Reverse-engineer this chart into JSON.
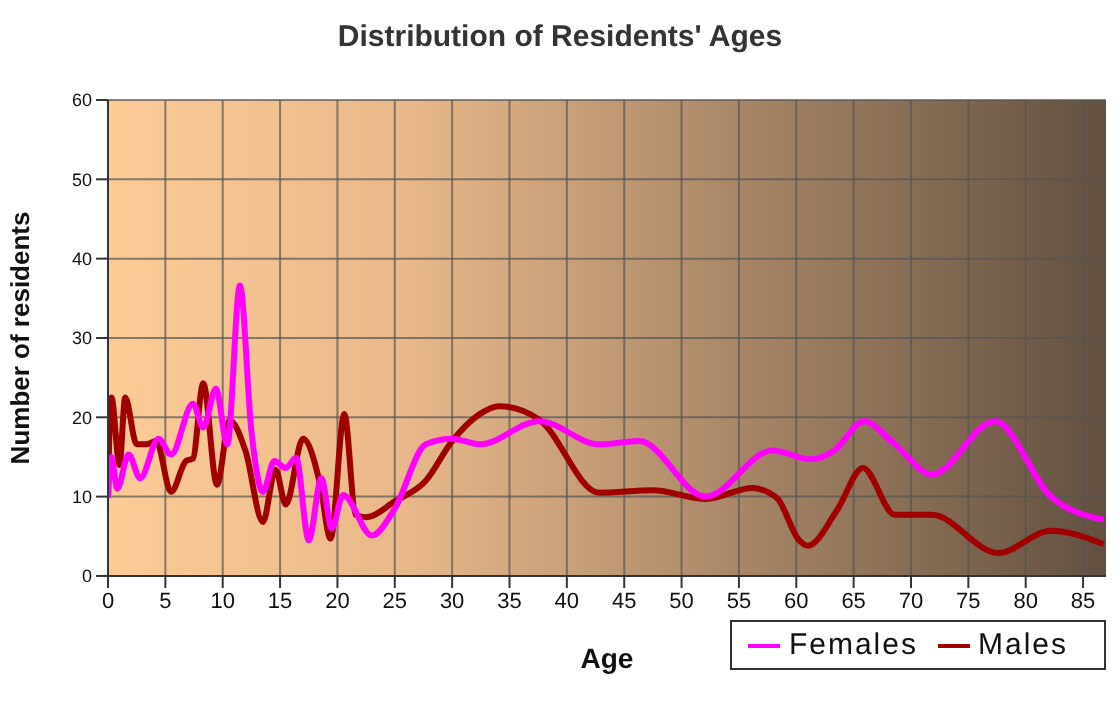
{
  "chart_data": {
    "type": "line",
    "title": "Distribution of Residents' Ages",
    "xlabel": "Age",
    "ylabel": "Number of residents",
    "xlim": [
      0,
      87
    ],
    "xticks": [
      0,
      5,
      10,
      15,
      20,
      25,
      30,
      35,
      40,
      45,
      50,
      55,
      60,
      65,
      70,
      75,
      80,
      85
    ],
    "ylim": [
      0,
      60
    ],
    "yticks": [
      0,
      10,
      20,
      30,
      40,
      50,
      60
    ],
    "grid": true,
    "legend": "bottom right",
    "marker": "none",
    "series": [
      {
        "name": "Males",
        "color": "#a00000",
        "x": [
          0,
          0.3,
          1,
          1.5,
          2.5,
          3.3,
          4.2,
          5.5,
          6.8,
          7.4,
          8.3,
          9.5,
          10.6,
          12,
          13.5,
          14.6,
          15.5,
          17,
          18.5,
          19.4,
          20.6,
          21.6,
          22.5,
          25,
          27.7,
          30,
          32.4,
          34.1,
          37.6,
          42.8,
          47.5,
          52.1,
          56.2,
          57.6,
          58.4,
          60.2,
          61,
          63.6,
          65.8,
          68.6,
          71.8,
          77.6,
          82.2,
          86.8
        ],
        "values": [
          11.5,
          22.5,
          14,
          22.5,
          16.6,
          16.6,
          17,
          10.6,
          14.5,
          14.8,
          24.3,
          11.5,
          19.6,
          15.7,
          6.8,
          13.4,
          9,
          17.3,
          11.5,
          4.7,
          20.4,
          7.7,
          7.4,
          9.4,
          12,
          17,
          20.4,
          21.4,
          19.7,
          10.5,
          10.8,
          9.7,
          11.1,
          10.5,
          9.7,
          4.6,
          3.8,
          8.4,
          13.6,
          7.7,
          7.7,
          2.9,
          5.7,
          4
        ]
      },
      {
        "name": "Females",
        "color": "#ff00ff",
        "x": [
          0,
          0.3,
          0.8,
          1.8,
          2.8,
          4.4,
          5.5,
          7.4,
          8.3,
          9.4,
          10.4,
          11.5,
          12.5,
          13.5,
          14.5,
          15.5,
          16.4,
          17.5,
          18.6,
          19.5,
          20.5,
          23,
          25,
          27.7,
          30,
          32.4,
          37.6,
          42.8,
          46.3,
          52.1,
          57.9,
          61.3,
          63.3,
          65.9,
          68.6,
          71.8,
          77.3,
          82.2,
          86.8
        ],
        "values": [
          9.8,
          15,
          11,
          15.3,
          12.3,
          17.3,
          15.3,
          21.7,
          18.7,
          23.6,
          16.6,
          36.6,
          18.3,
          10.6,
          14.5,
          13.6,
          14.9,
          4.5,
          12.3,
          6,
          10.2,
          5.1,
          8.5,
          16.6,
          17.3,
          16.6,
          19.5,
          16.6,
          17,
          10,
          15.8,
          14.7,
          15.8,
          19.5,
          16.6,
          12.8,
          19.5,
          10,
          7.1
        ]
      }
    ]
  }
}
